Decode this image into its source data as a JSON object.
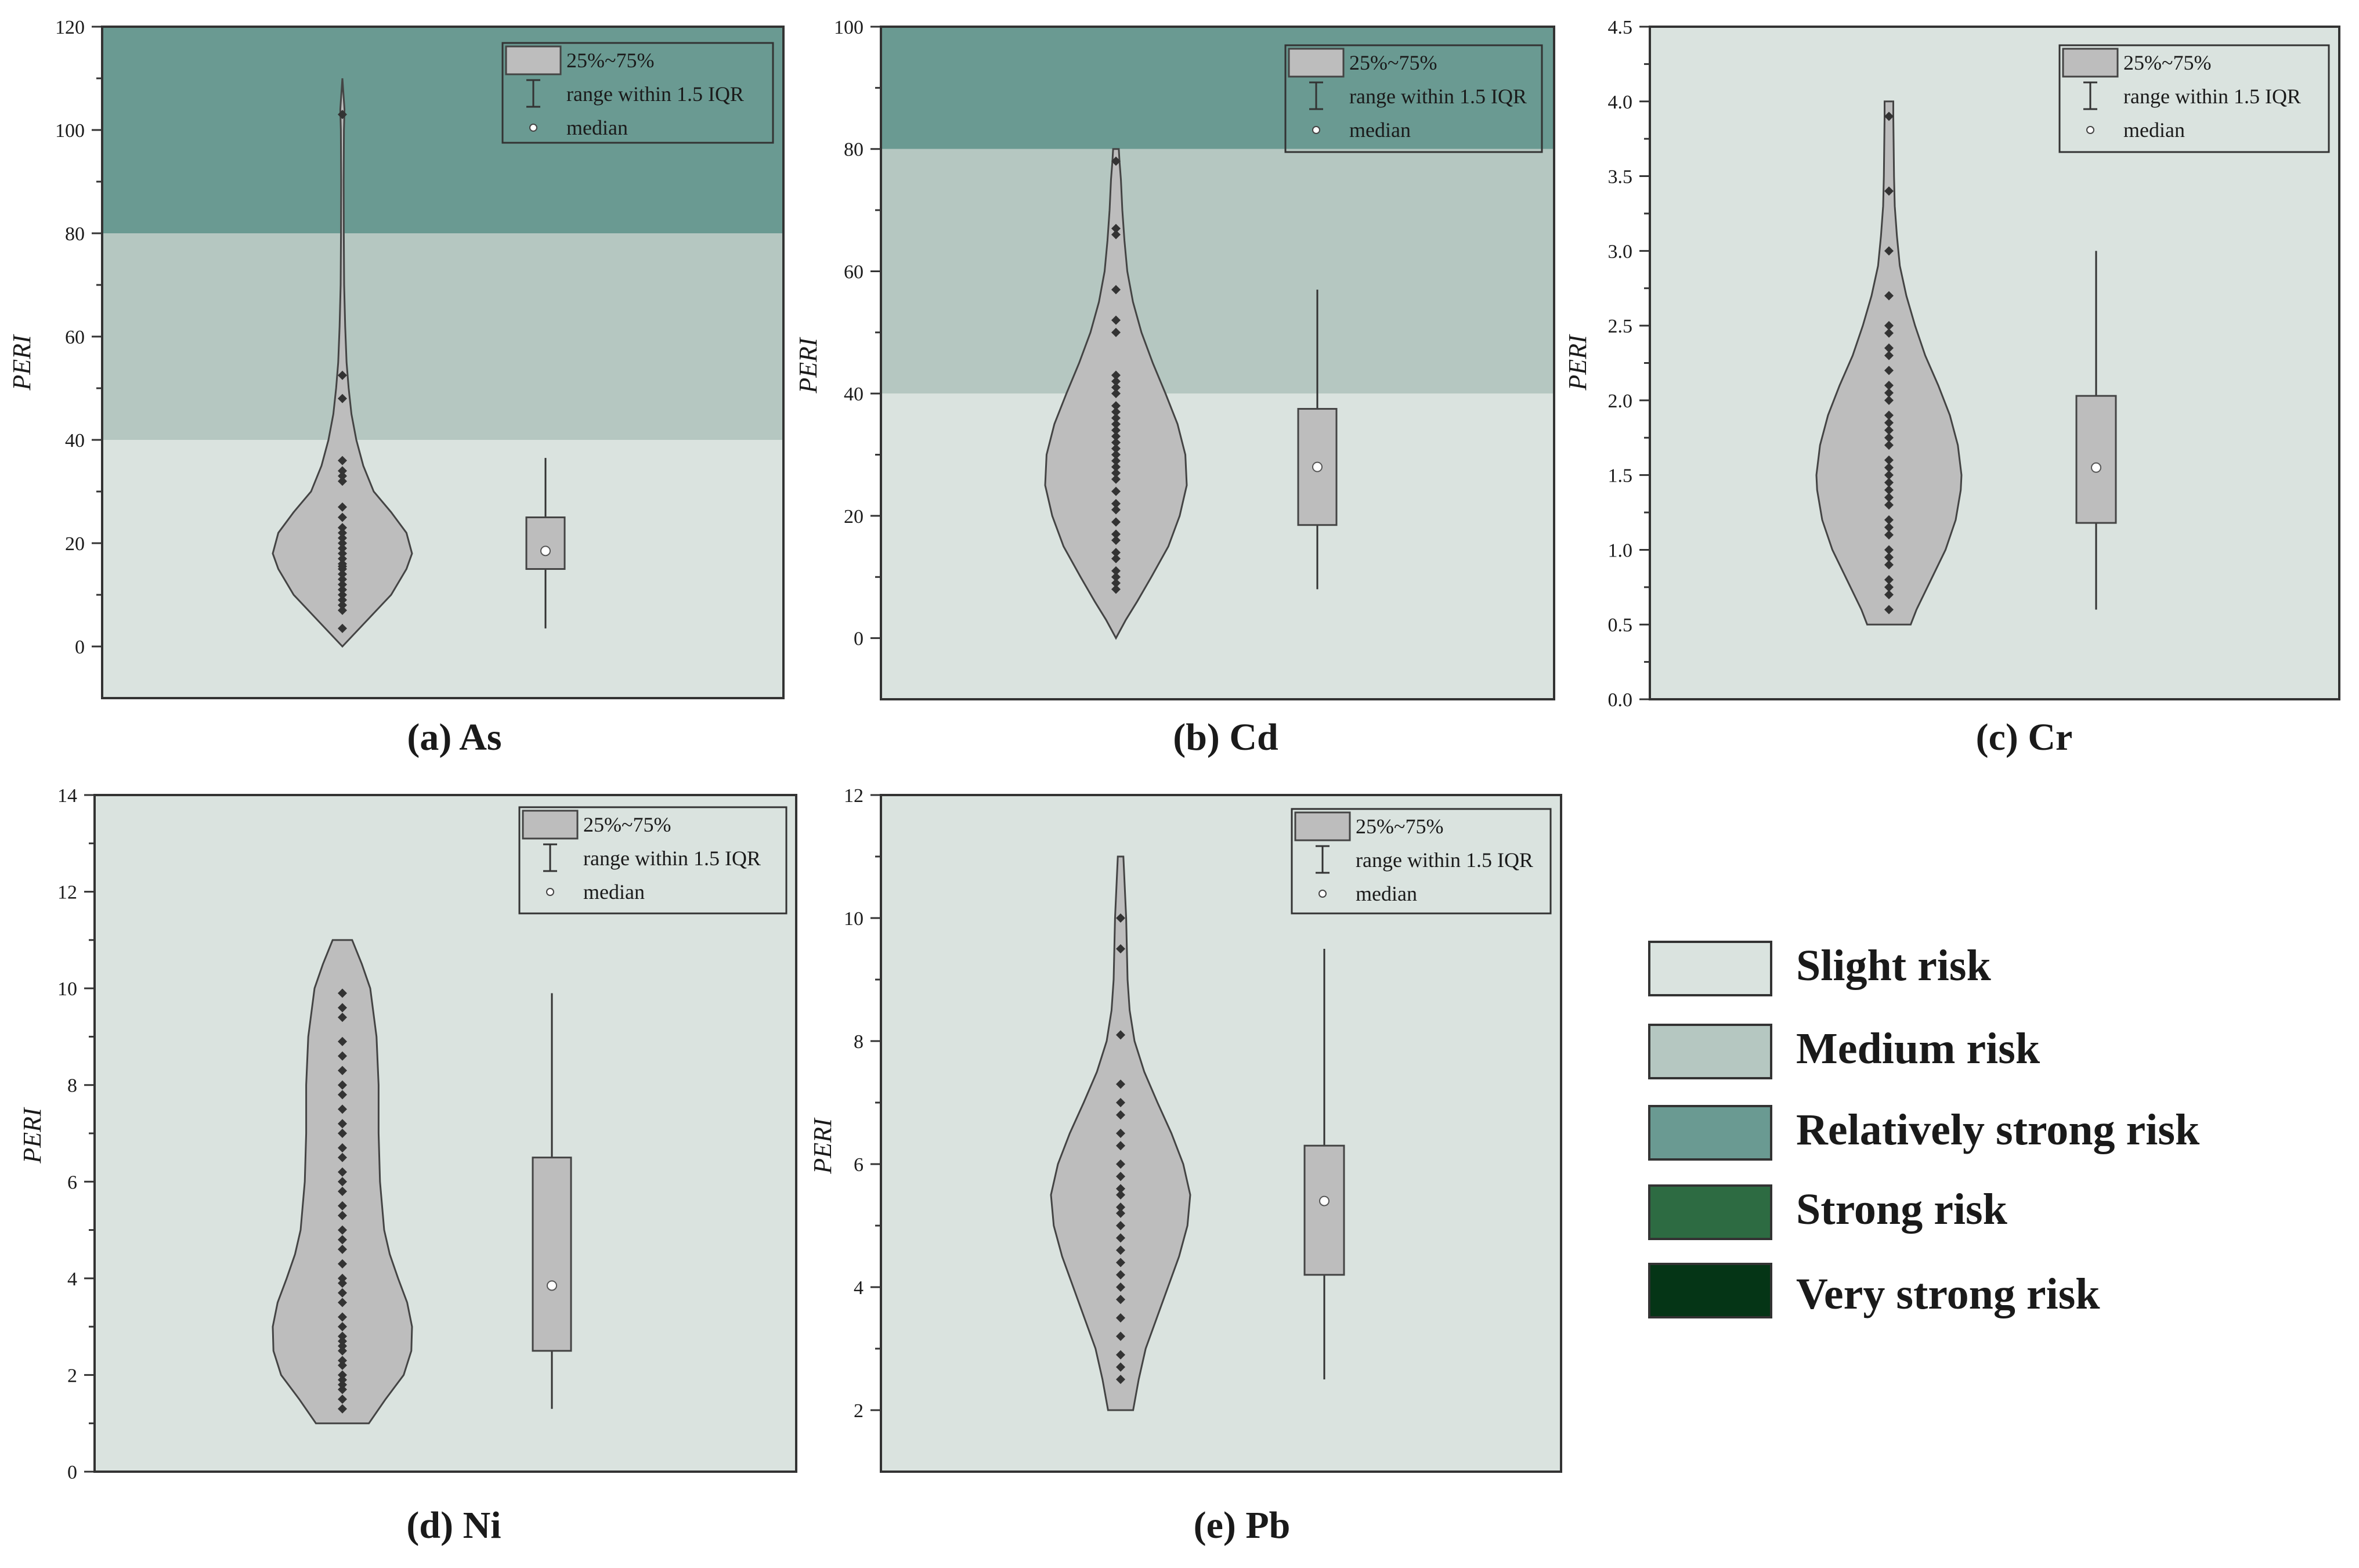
{
  "figure": {
    "risk_legend": [
      {
        "label": "Slight risk",
        "color": "#dae3df"
      },
      {
        "label": "Medium risk",
        "color": "#b5c7c1"
      },
      {
        "label": "Relatively strong risk",
        "color": "#6a9a92"
      },
      {
        "label": "Strong risk",
        "color": "#2d6b42"
      },
      {
        "label": "Very strong risk",
        "color": "#053516"
      }
    ],
    "box_legend": {
      "iqr": "25%~75%",
      "whisker": "range within 1.5 IQR",
      "median": "median"
    }
  },
  "chart_data": [
    {
      "type": "violin+box",
      "caption": "(a) As",
      "ylabel": "PERI",
      "ylim": [
        -10,
        120
      ],
      "yticks": [
        "0",
        "20",
        "40",
        "60",
        "80",
        "100",
        "120"
      ],
      "bands": [
        {
          "from": -10,
          "to": 40,
          "risk": 0
        },
        {
          "from": 40,
          "to": 80,
          "risk": 1
        },
        {
          "from": 80,
          "to": 120,
          "risk": 2
        }
      ],
      "box": {
        "q1": 15,
        "median": 18.5,
        "q3": 25,
        "whisker_low": 3.5,
        "whisker_high": 36.5
      },
      "violin": [
        [
          0,
          0
        ],
        [
          5,
          0.35
        ],
        [
          10,
          0.7
        ],
        [
          15,
          0.92
        ],
        [
          18,
          1.0
        ],
        [
          22,
          0.92
        ],
        [
          26,
          0.7
        ],
        [
          30,
          0.45
        ],
        [
          35,
          0.3
        ],
        [
          40,
          0.2
        ],
        [
          45,
          0.13
        ],
        [
          50,
          0.09
        ],
        [
          55,
          0.06
        ],
        [
          62,
          0.04
        ],
        [
          70,
          0.025
        ],
        [
          80,
          0.02
        ],
        [
          90,
          0.018
        ],
        [
          100,
          0.022
        ],
        [
          104,
          0.03
        ],
        [
          108,
          0.01
        ],
        [
          110,
          0
        ]
      ],
      "points": [
        3.5,
        7,
        8,
        9,
        10,
        11,
        12,
        13,
        14,
        15,
        15.5,
        16,
        17,
        18,
        19,
        20,
        21,
        22,
        23,
        25,
        27,
        32,
        33,
        34,
        36,
        48,
        52.5,
        103
      ]
    },
    {
      "type": "violin+box",
      "caption": "(b) Cd",
      "ylabel": "PERI",
      "ylim": [
        -10,
        100
      ],
      "yticks": [
        "0",
        "20",
        "40",
        "60",
        "80",
        "100"
      ],
      "bands": [
        {
          "from": -10,
          "to": 40,
          "risk": 0
        },
        {
          "from": 40,
          "to": 80,
          "risk": 1
        },
        {
          "from": 80,
          "to": 100,
          "risk": 2
        }
      ],
      "box": {
        "q1": 18.5,
        "median": 28,
        "q3": 37.5,
        "whisker_low": 8,
        "whisker_high": 57
      },
      "violin": [
        [
          0,
          0
        ],
        [
          3,
          0.14
        ],
        [
          6,
          0.3
        ],
        [
          10,
          0.5
        ],
        [
          15,
          0.74
        ],
        [
          20,
          0.9
        ],
        [
          25,
          1.0
        ],
        [
          30,
          0.98
        ],
        [
          35,
          0.87
        ],
        [
          40,
          0.7
        ],
        [
          45,
          0.52
        ],
        [
          50,
          0.36
        ],
        [
          55,
          0.24
        ],
        [
          60,
          0.16
        ],
        [
          65,
          0.12
        ],
        [
          70,
          0.09
        ],
        [
          75,
          0.07
        ],
        [
          78,
          0.05
        ],
        [
          80,
          0.04
        ],
        [
          80,
          0
        ]
      ],
      "points": [
        8,
        9,
        10,
        11,
        13,
        14,
        16,
        17,
        19,
        21,
        22,
        24,
        26,
        27,
        28,
        29,
        30,
        31,
        32,
        33,
        34,
        35,
        36,
        37,
        38,
        40,
        41,
        42,
        43,
        50,
        52,
        57,
        66,
        67,
        78
      ]
    },
    {
      "type": "violin+box",
      "caption": "(c) Cr",
      "ylabel": "PERI",
      "ylim": [
        0,
        4.5
      ],
      "yticks": [
        "0.0",
        "0.5",
        "1.0",
        "1.5",
        "2.0",
        "2.5",
        "3.0",
        "3.5",
        "4.0",
        "4.5"
      ],
      "bands": [
        {
          "from": 0,
          "to": 4.5,
          "risk": 0
        }
      ],
      "box": {
        "q1": 1.18,
        "median": 1.55,
        "q3": 2.03,
        "whisker_low": 0.6,
        "whisker_high": 3.0
      },
      "violin": [
        [
          0.5,
          0.3
        ],
        [
          0.6,
          0.38
        ],
        [
          0.8,
          0.58
        ],
        [
          1.0,
          0.78
        ],
        [
          1.2,
          0.92
        ],
        [
          1.4,
          0.99
        ],
        [
          1.5,
          1.0
        ],
        [
          1.7,
          0.95
        ],
        [
          1.9,
          0.84
        ],
        [
          2.1,
          0.68
        ],
        [
          2.3,
          0.5
        ],
        [
          2.5,
          0.36
        ],
        [
          2.7,
          0.24
        ],
        [
          2.9,
          0.15
        ],
        [
          3.1,
          0.11
        ],
        [
          3.3,
          0.08
        ],
        [
          3.5,
          0.07
        ],
        [
          3.7,
          0.065
        ],
        [
          3.9,
          0.06
        ],
        [
          4.0,
          0.06
        ],
        [
          4.0,
          0
        ]
      ],
      "points": [
        0.6,
        0.7,
        0.75,
        0.8,
        0.9,
        0.95,
        1.0,
        1.1,
        1.15,
        1.2,
        1.3,
        1.35,
        1.4,
        1.45,
        1.5,
        1.55,
        1.6,
        1.7,
        1.75,
        1.8,
        1.85,
        1.9,
        2.0,
        2.05,
        2.1,
        2.2,
        2.3,
        2.35,
        2.45,
        2.5,
        2.7,
        3.0,
        3.4,
        3.9
      ]
    },
    {
      "type": "violin+box",
      "caption": "(d) Ni",
      "ylabel": "PERI",
      "ylim": [
        0,
        14
      ],
      "yticks": [
        "0",
        "2",
        "4",
        "6",
        "8",
        "10",
        "12",
        "14"
      ],
      "bands": [
        {
          "from": 0,
          "to": 14,
          "risk": 0
        }
      ],
      "box": {
        "q1": 2.5,
        "median": 3.85,
        "q3": 6.5,
        "whisker_low": 1.3,
        "whisker_high": 9.9
      },
      "violin": [
        [
          1,
          0.38
        ],
        [
          1.5,
          0.62
        ],
        [
          2,
          0.88
        ],
        [
          2.5,
          0.99
        ],
        [
          3,
          1.0
        ],
        [
          3.5,
          0.93
        ],
        [
          4,
          0.8
        ],
        [
          4.5,
          0.68
        ],
        [
          5,
          0.6
        ],
        [
          6,
          0.54
        ],
        [
          7,
          0.52
        ],
        [
          8,
          0.52
        ],
        [
          9,
          0.49
        ],
        [
          10,
          0.4
        ],
        [
          10.5,
          0.28
        ],
        [
          11,
          0.14
        ],
        [
          11,
          0
        ]
      ],
      "points": [
        1.3,
        1.5,
        1.7,
        1.8,
        1.9,
        2.0,
        2.2,
        2.3,
        2.5,
        2.6,
        2.7,
        2.8,
        3.0,
        3.2,
        3.5,
        3.7,
        3.9,
        4.0,
        4.3,
        4.6,
        4.8,
        5.0,
        5.3,
        5.5,
        5.8,
        6.0,
        6.2,
        6.5,
        6.7,
        7.0,
        7.2,
        7.5,
        7.8,
        8.0,
        8.3,
        8.6,
        8.9,
        9.4,
        9.6,
        9.9
      ]
    },
    {
      "type": "violin+box",
      "caption": "(e) Pb",
      "ylabel": "PERI",
      "ylim": [
        1,
        12
      ],
      "yticks": [
        "2",
        "4",
        "6",
        "8",
        "10",
        "12"
      ],
      "bands": [
        {
          "from": 1,
          "to": 12,
          "risk": 0
        }
      ],
      "box": {
        "q1": 4.2,
        "median": 5.4,
        "q3": 6.3,
        "whisker_low": 2.5,
        "whisker_high": 9.5
      },
      "violin": [
        [
          2,
          0.18
        ],
        [
          2.5,
          0.26
        ],
        [
          3,
          0.36
        ],
        [
          3.5,
          0.52
        ],
        [
          4,
          0.68
        ],
        [
          4.5,
          0.84
        ],
        [
          5,
          0.96
        ],
        [
          5.5,
          1.0
        ],
        [
          6,
          0.9
        ],
        [
          6.5,
          0.73
        ],
        [
          7,
          0.53
        ],
        [
          7.5,
          0.34
        ],
        [
          8,
          0.2
        ],
        [
          8.5,
          0.13
        ],
        [
          9,
          0.1
        ],
        [
          9.5,
          0.09
        ],
        [
          10,
          0.08
        ],
        [
          10.5,
          0.06
        ],
        [
          11,
          0.04
        ],
        [
          11,
          0
        ]
      ],
      "points": [
        2.5,
        2.7,
        2.9,
        3.2,
        3.5,
        3.8,
        4.0,
        4.2,
        4.4,
        4.6,
        4.8,
        5.0,
        5.2,
        5.3,
        5.5,
        5.6,
        5.8,
        6.0,
        6.3,
        6.5,
        6.8,
        7.0,
        7.3,
        8.1,
        9.5,
        10.0
      ]
    }
  ]
}
